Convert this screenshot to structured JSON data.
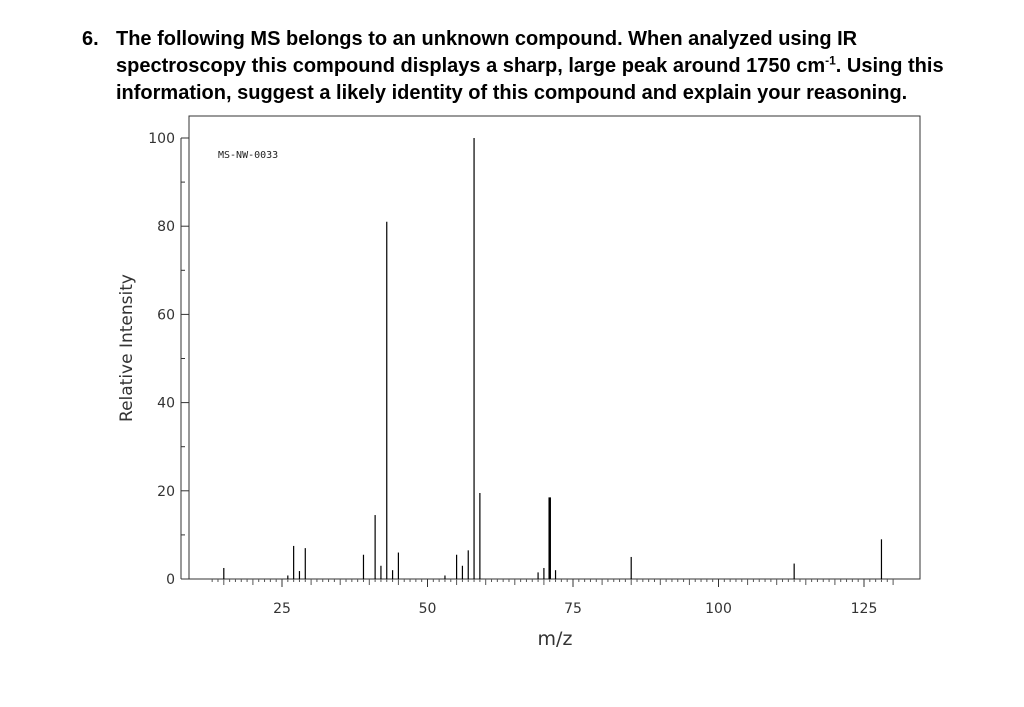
{
  "question": {
    "number": "6.",
    "line1": "The following MS belongs to an unknown compound. When analyzed using IR",
    "line2_pre": "spectroscopy this compound displays a sharp, large peak around 1750 cm",
    "line2_sup": "-1",
    "line2_post": ". Using this",
    "line3": "information, suggest a likely identity of this compound and explain your reasoning."
  },
  "chart_data": {
    "type": "bar",
    "annotation": "MS-NW-0033",
    "xlabel": "m/z",
    "ylabel": "Relative Intensity",
    "xlim": [
      10,
      130
    ],
    "ylim": [
      0,
      100
    ],
    "x_ticks": [
      25,
      50,
      75,
      100,
      125
    ],
    "y_ticks": [
      0,
      20,
      40,
      60,
      80,
      100
    ],
    "grid": false,
    "peaks": [
      {
        "mz": 15,
        "intensity": 2.5
      },
      {
        "mz": 26,
        "intensity": 0.8
      },
      {
        "mz": 27,
        "intensity": 7.5
      },
      {
        "mz": 28,
        "intensity": 1.8
      },
      {
        "mz": 29,
        "intensity": 7.0
      },
      {
        "mz": 39,
        "intensity": 5.5
      },
      {
        "mz": 41,
        "intensity": 14.5
      },
      {
        "mz": 42,
        "intensity": 3.0
      },
      {
        "mz": 43,
        "intensity": 81.0
      },
      {
        "mz": 44,
        "intensity": 2.0
      },
      {
        "mz": 45,
        "intensity": 6.0
      },
      {
        "mz": 53,
        "intensity": 0.8
      },
      {
        "mz": 55,
        "intensity": 5.5
      },
      {
        "mz": 56,
        "intensity": 3.0
      },
      {
        "mz": 57,
        "intensity": 6.5
      },
      {
        "mz": 58,
        "intensity": 100.0
      },
      {
        "mz": 59,
        "intensity": 19.5
      },
      {
        "mz": 69,
        "intensity": 1.5
      },
      {
        "mz": 70,
        "intensity": 2.5
      },
      {
        "mz": 71,
        "intensity": 18.5
      },
      {
        "mz": 72,
        "intensity": 2.0
      },
      {
        "mz": 85,
        "intensity": 5.0
      },
      {
        "mz": 113,
        "intensity": 3.5
      },
      {
        "mz": 128,
        "intensity": 9.0
      }
    ]
  }
}
